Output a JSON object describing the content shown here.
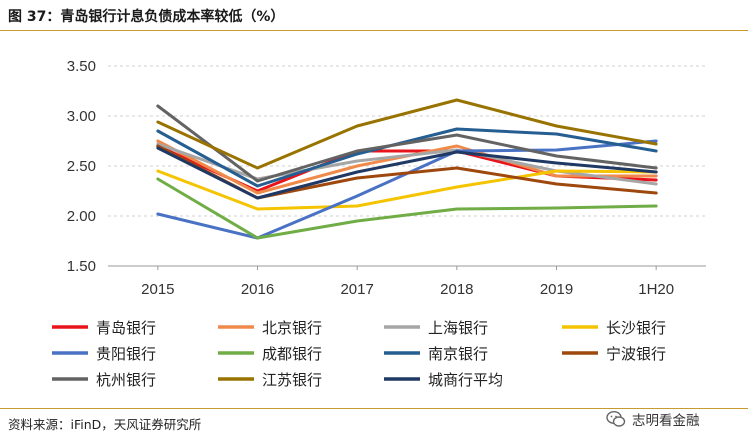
{
  "figure": {
    "title": "图 37：青岛银行计息负债成本率较低（%）",
    "source": "资料来源：iFinD，天风证券研究所",
    "watermark": "志明看金融"
  },
  "chart_data": {
    "type": "line",
    "title": "",
    "xlabel": "",
    "ylabel": "",
    "categories": [
      "2015",
      "2016",
      "2017",
      "2018",
      "2019",
      "1H20"
    ],
    "y_ticks": [
      "3.50",
      "3.00",
      "2.50",
      "2.00",
      "1.50"
    ],
    "ylim": [
      1.5,
      3.5
    ],
    "grid": "horizontal dashed",
    "legend_position": "bottom",
    "series": [
      {
        "name": "青岛银行",
        "color": "#e8141b",
        "values": [
          2.7,
          2.25,
          2.65,
          2.65,
          2.4,
          2.36
        ]
      },
      {
        "name": "北京银行",
        "color": "#f08a4b",
        "values": [
          2.75,
          2.23,
          2.5,
          2.7,
          2.4,
          2.4
        ]
      },
      {
        "name": "上海银行",
        "color": "#a6a6a6",
        "values": [
          2.72,
          2.37,
          2.55,
          2.66,
          2.45,
          2.32
        ]
      },
      {
        "name": "长沙银行",
        "color": "#f5c400",
        "values": [
          2.45,
          2.07,
          2.1,
          2.29,
          2.45,
          2.44
        ]
      },
      {
        "name": "贵阳银行",
        "color": "#4a72c4",
        "values": [
          2.02,
          1.78,
          2.2,
          2.65,
          2.66,
          2.75
        ]
      },
      {
        "name": "成都银行",
        "color": "#70ad47",
        "values": [
          2.37,
          1.78,
          1.95,
          2.07,
          2.08,
          2.1
        ]
      },
      {
        "name": "南京银行",
        "color": "#255e91",
        "values": [
          2.85,
          2.3,
          2.62,
          2.87,
          2.82,
          2.65
        ]
      },
      {
        "name": "宁波银行",
        "color": "#9e480e",
        "values": [
          2.7,
          2.18,
          2.38,
          2.48,
          2.32,
          2.23
        ]
      },
      {
        "name": "杭州银行",
        "color": "#636363",
        "values": [
          3.1,
          2.35,
          2.65,
          2.81,
          2.6,
          2.48
        ]
      },
      {
        "name": "江苏银行",
        "color": "#997300",
        "values": [
          2.94,
          2.48,
          2.9,
          3.16,
          2.9,
          2.72
        ]
      },
      {
        "name": "城商行平均",
        "color": "#1f3864",
        "values": [
          2.68,
          2.18,
          2.44,
          2.64,
          2.53,
          2.44
        ]
      }
    ]
  }
}
